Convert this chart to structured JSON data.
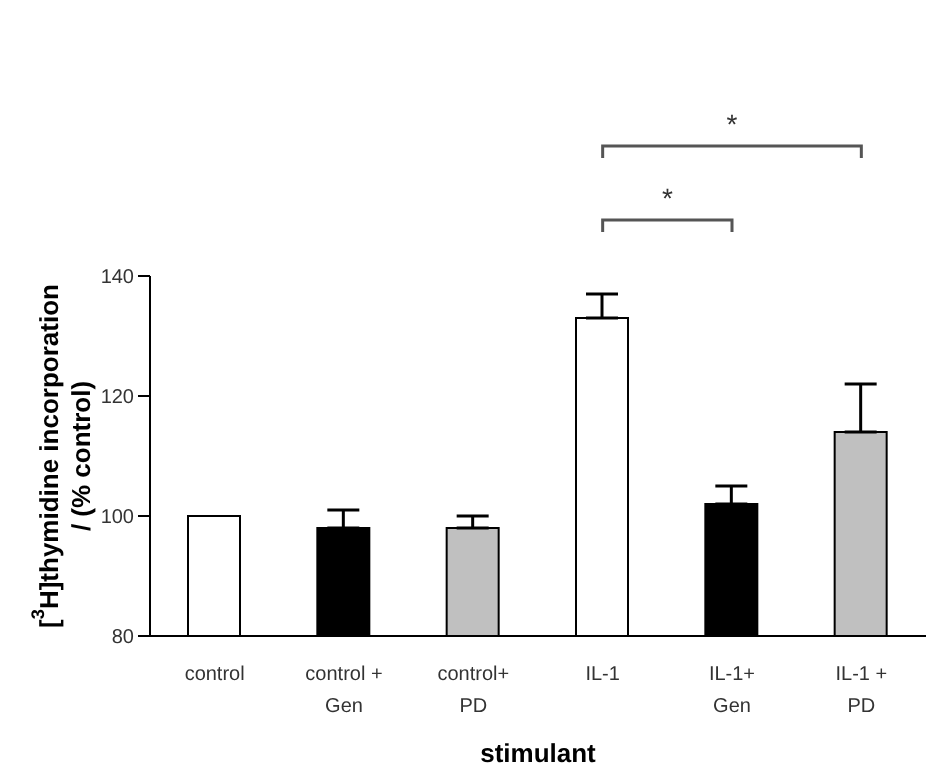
{
  "chart_data": {
    "type": "bar",
    "xlabel": "stimulant",
    "ylabel": "[$^{3}$H]thymidine incorporation / (% control)",
    "categories": [
      "control",
      "control + Gen",
      "control+ PD",
      "IL-1",
      "IL-1+ Gen",
      "IL-1 + PD"
    ],
    "values": [
      100,
      98,
      98,
      133,
      102,
      114
    ],
    "colors": [
      "#ffffff",
      "#000000",
      "#c0c0c0",
      "#ffffff",
      "#000000",
      "#c0c0c0"
    ],
    "errors": [
      null,
      [
        98,
        101
      ],
      [
        98,
        100
      ],
      [
        133,
        137
      ],
      [
        102,
        105
      ],
      [
        114,
        122
      ]
    ],
    "ylim": [
      80,
      140
    ],
    "yticks": [
      80,
      100,
      120,
      140
    ],
    "grid": false,
    "legend": false,
    "annotations": [
      "*",
      "*"
    ]
  }
}
